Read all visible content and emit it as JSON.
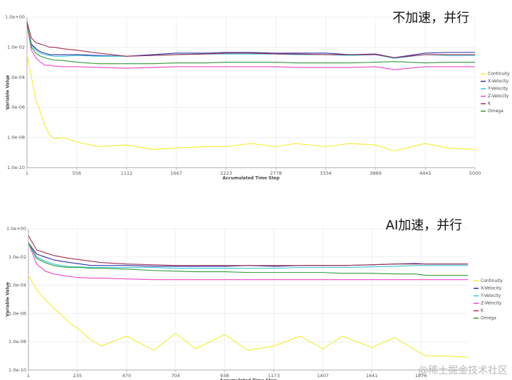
{
  "chart_data": [
    {
      "type": "line",
      "annotation": "不加速，并行",
      "x_label": "Accumulated Time Step",
      "y_label": "Variable Value",
      "log_y": true,
      "grid": true,
      "legend": "right",
      "xlim": [
        1,
        5000
      ],
      "xticks": [
        1,
        556,
        1112,
        1667,
        2223,
        2778,
        3334,
        3889,
        4445,
        5000
      ],
      "ylim": [
        1e-10,
        1
      ],
      "yticks": [
        {
          "value": 1,
          "label": "1.0e+00"
        },
        {
          "value": 0.01,
          "label": "1.0e-02"
        },
        {
          "value": 0.0001,
          "label": "1.0e-04"
        },
        {
          "value": 1e-06,
          "label": "1.0e-06"
        },
        {
          "value": 1e-08,
          "label": "1.0e-08"
        },
        {
          "value": 1e-10,
          "label": "1.0e-10"
        }
      ],
      "x": [
        1,
        50,
        100,
        150,
        200,
        250,
        300,
        400,
        556,
        800,
        1112,
        1400,
        1667,
        2000,
        2223,
        2500,
        2778,
        3000,
        3334,
        3600,
        3889,
        4100,
        4445,
        4700,
        5000
      ],
      "series": [
        {
          "name": "Continuity",
          "color": "#f2ee2e",
          "values": [
            0.0032,
            0.0001,
            3.2e-06,
            5e-07,
            6.3e-08,
            1.6e-08,
            8e-09,
            1e-08,
            5e-09,
            2.5e-09,
            3.2e-09,
            1.6e-09,
            2e-09,
            2.5e-09,
            2.5e-09,
            4e-09,
            2.5e-09,
            4e-09,
            2.5e-09,
            4e-09,
            3.2e-09,
            1.3e-09,
            4e-09,
            2e-09,
            1.6e-09
          ]
        },
        {
          "name": "X-Velocity",
          "color": "#2e2ea8",
          "values": [
            0.32,
            0.016,
            0.0079,
            0.005,
            0.004,
            0.0032,
            0.0032,
            0.0032,
            0.0032,
            0.0028,
            0.0025,
            0.0032,
            0.004,
            0.004,
            0.0045,
            0.0045,
            0.004,
            0.004,
            0.004,
            0.0032,
            0.0035,
            0.002,
            0.004,
            0.0045,
            0.0045
          ]
        },
        {
          "name": "Y-Velocity",
          "color": "#33c6d6",
          "values": [
            0.32,
            0.013,
            0.0063,
            0.004,
            0.0032,
            0.0028,
            0.0025,
            0.0025,
            0.0028,
            0.0025,
            0.0025,
            0.0028,
            0.0032,
            0.0035,
            0.0035,
            0.0035,
            0.0035,
            0.0032,
            0.0032,
            0.0028,
            0.0032,
            0.0018,
            0.0032,
            0.0028,
            0.0028
          ]
        },
        {
          "name": "Z-Velocity",
          "color": "#ee44cc",
          "values": [
            0.32,
            0.0063,
            0.002,
            0.001,
            0.00063,
            0.00063,
            0.00056,
            0.0005,
            0.0005,
            0.00045,
            0.0004,
            0.00045,
            0.0005,
            0.0005,
            0.0005,
            0.0005,
            0.0005,
            0.00045,
            0.00045,
            0.00045,
            0.0005,
            0.00032,
            0.0005,
            0.0005,
            0.0005
          ]
        },
        {
          "name": "K",
          "color": "#a03050",
          "values": [
            0.5,
            0.04,
            0.02,
            0.016,
            0.013,
            0.01,
            0.01,
            0.0079,
            0.0063,
            0.004,
            0.0025,
            0.0028,
            0.0032,
            0.0035,
            0.004,
            0.004,
            0.0035,
            0.0035,
            0.0032,
            0.0032,
            0.0032,
            0.002,
            0.0032,
            0.0032,
            0.0032
          ]
        },
        {
          "name": "Omega",
          "color": "#2e9a3a",
          "values": [
            0.32,
            0.01,
            0.004,
            0.0025,
            0.002,
            0.0016,
            0.0014,
            0.0013,
            0.001,
            0.0008,
            0.0008,
            0.0008,
            0.0009,
            0.0009,
            0.001,
            0.001,
            0.001,
            0.0009,
            0.0009,
            0.0009,
            0.001,
            0.0011,
            0.0009,
            0.001,
            0.001
          ]
        }
      ]
    },
    {
      "type": "line",
      "annotation": "AI加速，并行",
      "x_label": "Accumulated Time Step",
      "y_label": "Variable Value",
      "log_y": true,
      "grid": true,
      "legend": "right",
      "xlim": [
        1,
        2100
      ],
      "xticks": [
        1,
        235,
        470,
        704,
        938,
        1173,
        1407,
        1641,
        1876
      ],
      "ylim": [
        1e-10,
        1
      ],
      "yticks": [
        {
          "value": 1,
          "label": "1.0e+00"
        },
        {
          "value": 0.01,
          "label": "1.0e-02"
        },
        {
          "value": 0.0001,
          "label": "1.0e-04"
        },
        {
          "value": 1e-06,
          "label": "1.0e-06"
        },
        {
          "value": 1e-08,
          "label": "1.0e-08"
        },
        {
          "value": 1e-10,
          "label": "1.0e-10"
        }
      ],
      "x": [
        1,
        40,
        80,
        120,
        160,
        200,
        250,
        300,
        350,
        470,
        600,
        704,
        800,
        938,
        1050,
        1173,
        1300,
        1407,
        1500,
        1641,
        1750,
        1850,
        1900,
        2000,
        2100
      ],
      "series": [
        {
          "name": "Continuity",
          "color": "#f2ee2e",
          "values": [
            0.0005,
            5e-05,
            1e-05,
            2.5e-06,
            7.9e-07,
            2e-07,
            6.3e-08,
            1.3e-08,
            5e-09,
            2.5e-08,
            2.5e-09,
            4e-08,
            3.2e-09,
            3.2e-08,
            2.5e-09,
            5e-09,
            2.5e-08,
            3.2e-09,
            2.5e-08,
            4e-09,
            2e-08,
            2.5e-09,
            1e-09,
            1e-09,
            7.9e-10
          ]
        },
        {
          "name": "X-Velocity",
          "color": "#2e2ea8",
          "values": [
            0.1,
            0.016,
            0.01,
            0.0063,
            0.005,
            0.004,
            0.0032,
            0.0025,
            0.0025,
            0.0025,
            0.0022,
            0.0022,
            0.0022,
            0.0022,
            0.0025,
            0.0022,
            0.0025,
            0.0025,
            0.0025,
            0.0028,
            0.0032,
            0.0035,
            0.0032,
            0.0032,
            0.0032
          ]
        },
        {
          "name": "Y-Velocity",
          "color": "#33c6d6",
          "values": [
            0.1,
            0.01,
            0.005,
            0.0032,
            0.0025,
            0.002,
            0.002,
            0.0018,
            0.0018,
            0.0018,
            0.0018,
            0.0016,
            0.0016,
            0.0016,
            0.0016,
            0.0016,
            0.0018,
            0.0018,
            0.0018,
            0.002,
            0.0022,
            0.0025,
            0.0025,
            0.0025,
            0.0025
          ]
        },
        {
          "name": "Z-Velocity",
          "color": "#ee44cc",
          "values": [
            0.1,
            0.0032,
            0.001,
            0.00063,
            0.0005,
            0.0004,
            0.00035,
            0.00032,
            0.00032,
            0.00028,
            0.00025,
            0.00025,
            0.00025,
            0.00025,
            0.00025,
            0.00025,
            0.00025,
            0.00025,
            0.00025,
            0.00025,
            0.00025,
            0.00025,
            0.00025,
            0.00025,
            0.00025
          ]
        },
        {
          "name": "K",
          "color": "#a03050",
          "values": [
            0.32,
            0.032,
            0.02,
            0.013,
            0.01,
            0.0079,
            0.0063,
            0.005,
            0.004,
            0.0032,
            0.0028,
            0.0025,
            0.0025,
            0.0025,
            0.0025,
            0.0025,
            0.0025,
            0.0025,
            0.0025,
            0.0028,
            0.0032,
            0.0032,
            0.0032,
            0.0032,
            0.0032
          ]
        },
        {
          "name": "Omega",
          "color": "#2e9a3a",
          "values": [
            0.1,
            0.0079,
            0.004,
            0.0025,
            0.002,
            0.0018,
            0.0018,
            0.0016,
            0.0016,
            0.0014,
            0.0011,
            0.001,
            0.0009,
            0.0009,
            0.0008,
            0.0008,
            0.0008,
            0.0008,
            0.0007,
            0.0007,
            0.00063,
            0.00063,
            0.0005,
            0.0005,
            0.0005
          ]
        }
      ]
    }
  ],
  "watermark": "@稀土掘金技术社区"
}
